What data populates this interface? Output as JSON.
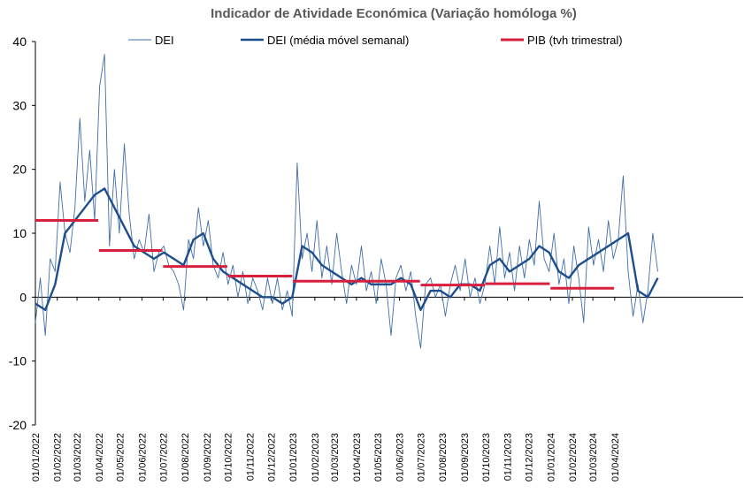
{
  "chart_data": {
    "type": "line",
    "title": "Indicador de Atividade Económica (Variação homóloga %)",
    "xlabel": "",
    "ylabel": "",
    "ylim": [
      -20,
      40
    ],
    "yticks": [
      -20,
      -10,
      0,
      10,
      20,
      30,
      40
    ],
    "x_start": "01/01/2022",
    "x_end": "30/09/2024",
    "xticks": [
      "01/01/2022",
      "01/02/2022",
      "01/03/2022",
      "01/04/2022",
      "01/05/2022",
      "01/06/2022",
      "01/07/2022",
      "01/08/2022",
      "01/09/2022",
      "01/10/2022",
      "01/11/2022",
      "01/12/2022",
      "01/01/2023",
      "01/02/2023",
      "01/03/2023",
      "01/04/2023",
      "01/05/2023",
      "01/06/2023",
      "01/07/2023",
      "01/08/2023",
      "01/09/2023",
      "01/10/2023",
      "01/11/2023",
      "01/12/2023",
      "01/01/2024",
      "01/02/2024",
      "01/03/2024",
      "01/04/2024"
    ],
    "legend_position": "top",
    "series": [
      {
        "name": "DEI",
        "color": "#3f6fa8",
        "style": "thin",
        "points": [
          [
            "01/01/2022",
            -4
          ],
          [
            "08/01/2022",
            3
          ],
          [
            "15/01/2022",
            -6
          ],
          [
            "22/01/2022",
            6
          ],
          [
            "29/01/2022",
            4
          ],
          [
            "05/02/2022",
            18
          ],
          [
            "12/02/2022",
            10
          ],
          [
            "19/02/2022",
            7
          ],
          [
            "26/02/2022",
            14
          ],
          [
            "05/03/2022",
            28
          ],
          [
            "12/03/2022",
            15
          ],
          [
            "19/03/2022",
            23
          ],
          [
            "26/03/2022",
            12
          ],
          [
            "02/04/2022",
            33
          ],
          [
            "09/04/2022",
            38
          ],
          [
            "16/04/2022",
            8
          ],
          [
            "23/04/2022",
            20
          ],
          [
            "30/04/2022",
            10
          ],
          [
            "07/05/2022",
            24
          ],
          [
            "14/05/2022",
            13
          ],
          [
            "21/05/2022",
            6
          ],
          [
            "28/05/2022",
            9
          ],
          [
            "04/06/2022",
            7
          ],
          [
            "11/06/2022",
            13
          ],
          [
            "18/06/2022",
            4
          ],
          [
            "25/06/2022",
            7
          ],
          [
            "02/07/2022",
            8
          ],
          [
            "09/07/2022",
            5
          ],
          [
            "16/07/2022",
            4
          ],
          [
            "23/07/2022",
            2
          ],
          [
            "30/07/2022",
            -2
          ],
          [
            "06/08/2022",
            9
          ],
          [
            "13/08/2022",
            6
          ],
          [
            "20/08/2022",
            14
          ],
          [
            "27/08/2022",
            8
          ],
          [
            "03/09/2022",
            12
          ],
          [
            "10/09/2022",
            5
          ],
          [
            "17/09/2022",
            3
          ],
          [
            "24/09/2022",
            7
          ],
          [
            "01/10/2022",
            2
          ],
          [
            "08/10/2022",
            5
          ],
          [
            "15/10/2022",
            0
          ],
          [
            "22/10/2022",
            4
          ],
          [
            "29/10/2022",
            -1
          ],
          [
            "05/11/2022",
            3
          ],
          [
            "12/11/2022",
            1
          ],
          [
            "19/11/2022",
            -2
          ],
          [
            "26/11/2022",
            3
          ],
          [
            "03/12/2022",
            -1
          ],
          [
            "10/12/2022",
            3
          ],
          [
            "17/12/2022",
            -2
          ],
          [
            "24/12/2022",
            1
          ],
          [
            "31/12/2022",
            -3
          ],
          [
            "07/01/2023",
            21
          ],
          [
            "14/01/2023",
            6
          ],
          [
            "21/01/2023",
            10
          ],
          [
            "28/01/2023",
            4
          ],
          [
            "04/02/2023",
            12
          ],
          [
            "11/02/2023",
            3
          ],
          [
            "18/02/2023",
            8
          ],
          [
            "25/02/2023",
            2
          ],
          [
            "04/03/2023",
            10
          ],
          [
            "11/03/2023",
            4
          ],
          [
            "18/03/2023",
            -1
          ],
          [
            "25/03/2023",
            5
          ],
          [
            "01/04/2023",
            2
          ],
          [
            "08/04/2023",
            8
          ],
          [
            "15/04/2023",
            1
          ],
          [
            "22/04/2023",
            4
          ],
          [
            "29/04/2023",
            -1
          ],
          [
            "06/05/2023",
            6
          ],
          [
            "13/05/2023",
            2
          ],
          [
            "20/05/2023",
            -6
          ],
          [
            "27/05/2023",
            3
          ],
          [
            "03/06/2023",
            5
          ],
          [
            "10/06/2023",
            1
          ],
          [
            "17/06/2023",
            4
          ],
          [
            "24/06/2023",
            -3
          ],
          [
            "01/07/2023",
            -8
          ],
          [
            "08/07/2023",
            2
          ],
          [
            "15/07/2023",
            3
          ],
          [
            "22/07/2023",
            0
          ],
          [
            "29/07/2023",
            2
          ],
          [
            "05/08/2023",
            -3
          ],
          [
            "12/08/2023",
            2
          ],
          [
            "19/08/2023",
            5
          ],
          [
            "26/08/2023",
            1
          ],
          [
            "02/09/2023",
            6
          ],
          [
            "09/09/2023",
            0
          ],
          [
            "16/09/2023",
            3
          ],
          [
            "23/09/2023",
            -1
          ],
          [
            "30/09/2023",
            2
          ],
          [
            "07/10/2023",
            8
          ],
          [
            "14/10/2023",
            2
          ],
          [
            "21/10/2023",
            11
          ],
          [
            "28/10/2023",
            3
          ],
          [
            "04/11/2023",
            7
          ],
          [
            "11/11/2023",
            1
          ],
          [
            "18/11/2023",
            8
          ],
          [
            "25/11/2023",
            3
          ],
          [
            "02/12/2023",
            9
          ],
          [
            "09/12/2023",
            5
          ],
          [
            "16/12/2023",
            15
          ],
          [
            "23/12/2023",
            6
          ],
          [
            "30/12/2023",
            4
          ],
          [
            "06/01/2024",
            10
          ],
          [
            "13/01/2024",
            2
          ],
          [
            "20/01/2024",
            6
          ],
          [
            "27/01/2024",
            -1
          ],
          [
            "03/02/2024",
            8
          ],
          [
            "10/02/2024",
            3
          ],
          [
            "17/02/2024",
            -4
          ],
          [
            "24/02/2024",
            11
          ],
          [
            "02/03/2024",
            5
          ],
          [
            "09/03/2024",
            9
          ],
          [
            "16/03/2024",
            4
          ],
          [
            "23/03/2024",
            12
          ],
          [
            "30/03/2024",
            6
          ],
          [
            "06/04/2024",
            9
          ],
          [
            "13/04/2024",
            19
          ],
          [
            "20/04/2024",
            4
          ],
          [
            "27/04/2024",
            -3
          ],
          [
            "04/05/2024",
            2
          ],
          [
            "11/05/2024",
            -4
          ],
          [
            "18/05/2024",
            1
          ],
          [
            "25/05/2024",
            10
          ],
          [
            "01/06/2024",
            4
          ]
        ]
      },
      {
        "name": "DEI (média móvel semanal)",
        "color": "#1f4e8c",
        "style": "thick",
        "points": [
          [
            "01/01/2022",
            -1
          ],
          [
            "15/01/2022",
            -2
          ],
          [
            "29/01/2022",
            2
          ],
          [
            "12/02/2022",
            10
          ],
          [
            "26/02/2022",
            12
          ],
          [
            "12/03/2022",
            14
          ],
          [
            "26/03/2022",
            16
          ],
          [
            "09/04/2022",
            17
          ],
          [
            "23/04/2022",
            14
          ],
          [
            "07/05/2022",
            11
          ],
          [
            "21/05/2022",
            8
          ],
          [
            "04/06/2022",
            7
          ],
          [
            "18/06/2022",
            6
          ],
          [
            "02/07/2022",
            7
          ],
          [
            "16/07/2022",
            6
          ],
          [
            "30/07/2022",
            5
          ],
          [
            "13/08/2022",
            9
          ],
          [
            "27/08/2022",
            10
          ],
          [
            "10/09/2022",
            6
          ],
          [
            "24/09/2022",
            4
          ],
          [
            "08/10/2022",
            3
          ],
          [
            "22/10/2022",
            2
          ],
          [
            "05/11/2022",
            1
          ],
          [
            "19/11/2022",
            0
          ],
          [
            "03/12/2022",
            0
          ],
          [
            "17/12/2022",
            -1
          ],
          [
            "31/12/2022",
            0
          ],
          [
            "14/01/2023",
            8
          ],
          [
            "28/01/2023",
            7
          ],
          [
            "11/02/2023",
            5
          ],
          [
            "25/02/2023",
            4
          ],
          [
            "11/03/2023",
            3
          ],
          [
            "25/03/2023",
            2
          ],
          [
            "08/04/2023",
            3
          ],
          [
            "22/04/2023",
            2
          ],
          [
            "06/05/2023",
            2
          ],
          [
            "20/05/2023",
            2
          ],
          [
            "03/06/2023",
            3
          ],
          [
            "17/06/2023",
            2
          ],
          [
            "01/07/2023",
            -2
          ],
          [
            "15/07/2023",
            1
          ],
          [
            "29/07/2023",
            1
          ],
          [
            "12/08/2023",
            0
          ],
          [
            "26/08/2023",
            2
          ],
          [
            "09/09/2023",
            2
          ],
          [
            "23/09/2023",
            1
          ],
          [
            "07/10/2023",
            5
          ],
          [
            "21/10/2023",
            6
          ],
          [
            "04/11/2023",
            4
          ],
          [
            "18/11/2023",
            5
          ],
          [
            "02/12/2023",
            6
          ],
          [
            "16/12/2023",
            8
          ],
          [
            "30/12/2023",
            7
          ],
          [
            "13/01/2024",
            4
          ],
          [
            "27/01/2024",
            3
          ],
          [
            "10/02/2024",
            5
          ],
          [
            "24/02/2024",
            6
          ],
          [
            "09/03/2024",
            7
          ],
          [
            "23/03/2024",
            8
          ],
          [
            "06/04/2024",
            9
          ],
          [
            "20/04/2024",
            10
          ],
          [
            "04/05/2024",
            1
          ],
          [
            "18/05/2024",
            0
          ],
          [
            "01/06/2024",
            3
          ]
        ]
      },
      {
        "name": "PIB (tvh trimestral)",
        "color": "#d81f3c",
        "style": "step",
        "segments": [
          {
            "start": "01/01/2022",
            "end": "31/03/2022",
            "value": 12
          },
          {
            "start": "01/04/2022",
            "end": "30/06/2022",
            "value": 7.3
          },
          {
            "start": "01/07/2022",
            "end": "30/09/2022",
            "value": 4.8
          },
          {
            "start": "01/10/2022",
            "end": "31/12/2022",
            "value": 3.3
          },
          {
            "start": "01/01/2023",
            "end": "31/03/2023",
            "value": 2.5
          },
          {
            "start": "01/04/2023",
            "end": "30/06/2023",
            "value": 2.5
          },
          {
            "start": "01/07/2023",
            "end": "30/09/2023",
            "value": 1.9
          },
          {
            "start": "01/10/2023",
            "end": "31/12/2023",
            "value": 2.1
          },
          {
            "start": "01/01/2024",
            "end": "31/03/2024",
            "value": 1.4
          }
        ]
      }
    ]
  }
}
